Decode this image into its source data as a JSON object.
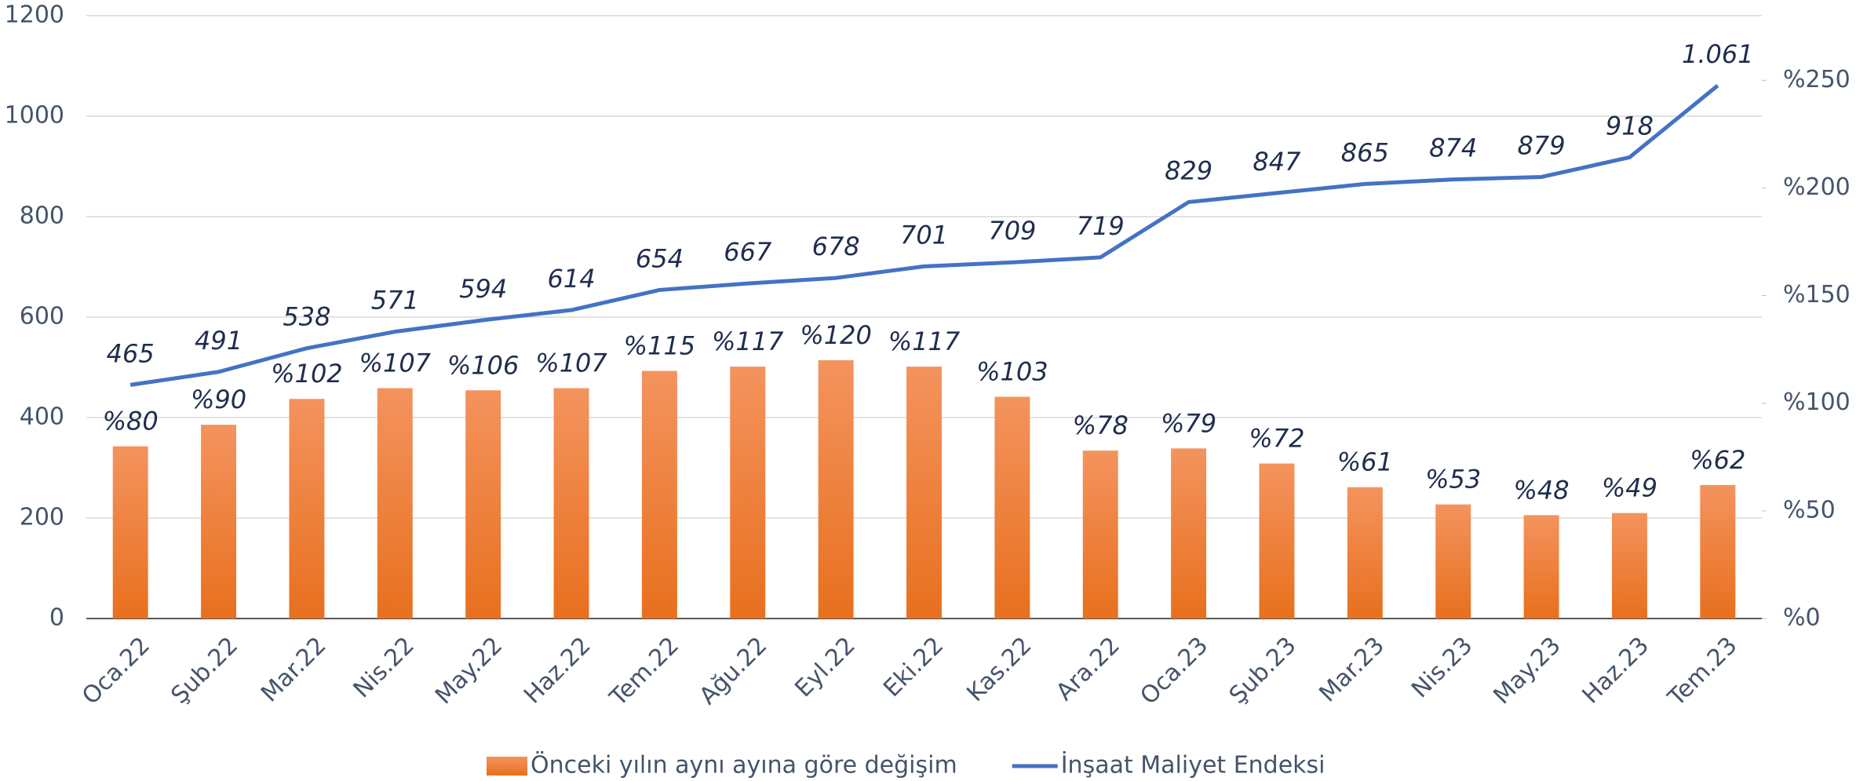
{
  "chart_data": {
    "type": "bar-line",
    "categories": [
      "Oca.22",
      "Şub.22",
      "Mar.22",
      "Nis.22",
      "May.22",
      "Haz.22",
      "Tem.22",
      "Ağu.22",
      "Eyl.22",
      "Eki.22",
      "Kas.22",
      "Ara.22",
      "Oca.23",
      "Şub.23",
      "Mar.23",
      "Nis.23",
      "May.23",
      "Haz.23",
      "Tem.23"
    ],
    "series": [
      {
        "name": "Önceki yılın aynı ayına göre değişim",
        "type": "bar",
        "axis": "y2",
        "color": "#ed7d31",
        "values": [
          80,
          90,
          102,
          107,
          106,
          107,
          115,
          117,
          120,
          117,
          103,
          78,
          79,
          72,
          61,
          53,
          48,
          49,
          62
        ],
        "value_labels": [
          "%80",
          "%90",
          "%102",
          "%107",
          "%106",
          "%107",
          "%115",
          "%117",
          "%120",
          "%117",
          "%103",
          "%78",
          "%79",
          "%72",
          "%61",
          "%53",
          "%48",
          "%49",
          "%62"
        ]
      },
      {
        "name": "İnşaat Maliyet Endeksi",
        "type": "line",
        "axis": "y",
        "color": "#4472c4",
        "values": [
          465,
          491,
          538,
          571,
          594,
          614,
          654,
          667,
          678,
          701,
          709,
          719,
          829,
          847,
          865,
          874,
          879,
          918,
          1061
        ],
        "value_labels": [
          "465",
          "491",
          "538",
          "571",
          "594",
          "614",
          "654",
          "667",
          "678",
          "701",
          "709",
          "719",
          "829",
          "847",
          "865",
          "874",
          "879",
          "918",
          "1.061"
        ]
      }
    ],
    "ylim": [
      0,
      1200
    ],
    "yticks": [
      0,
      200,
      400,
      600,
      800,
      1000,
      1200
    ],
    "y2lim": [
      0,
      280
    ],
    "y2ticks": [
      {
        "value": 0,
        "label": "%0"
      },
      {
        "value": 50,
        "label": "%50"
      },
      {
        "value": 100,
        "label": "%100"
      },
      {
        "value": 150,
        "label": "%150"
      },
      {
        "value": 200,
        "label": "%200"
      },
      {
        "value": 250,
        "label": "%250"
      }
    ],
    "grid": true,
    "legend": "bottom"
  }
}
